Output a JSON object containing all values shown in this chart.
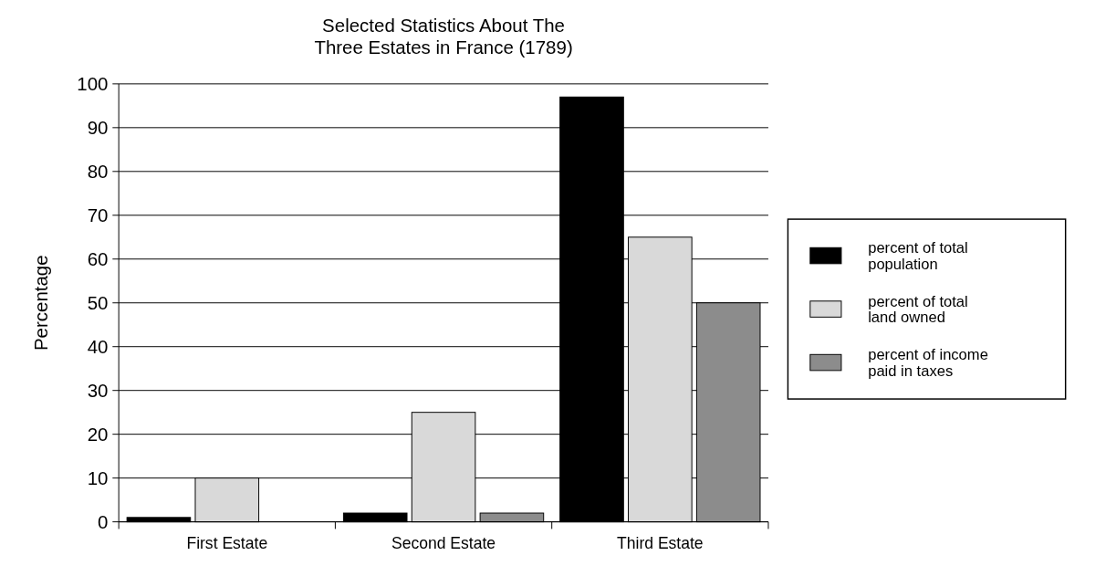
{
  "chart_data": {
    "type": "bar",
    "title": "Selected Statistics About The Three Estates in France (1789)",
    "ylabel": "Percentage",
    "categories": [
      "First Estate",
      "Second Estate",
      "Third Estate"
    ],
    "series": [
      {
        "name": "percent of total population",
        "color": "#000000",
        "values": [
          1,
          2,
          97
        ]
      },
      {
        "name": "percent of total land owned",
        "color": "#d9d9d9",
        "values": [
          10,
          25,
          65
        ]
      },
      {
        "name": "percent of income paid in taxes",
        "color": "#8c8c8c",
        "values": [
          0,
          2,
          50
        ]
      }
    ],
    "ylim": [
      0,
      100
    ],
    "yticks": [
      0,
      10,
      20,
      30,
      40,
      50,
      60,
      70,
      80,
      90,
      100
    ],
    "grid": "y",
    "legend": "right"
  }
}
